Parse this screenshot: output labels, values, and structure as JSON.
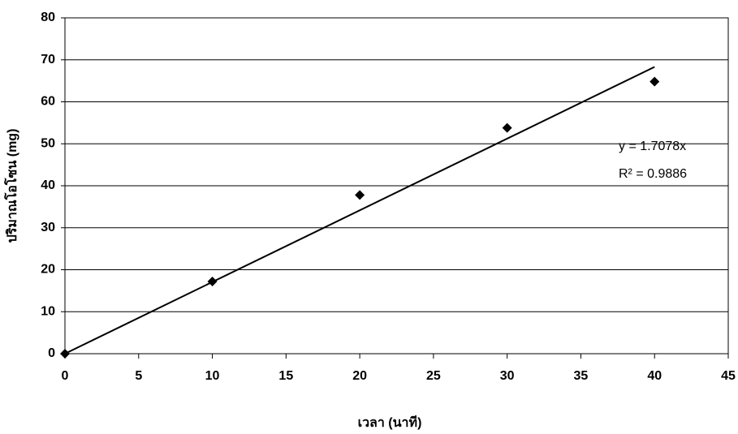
{
  "chart_data": {
    "type": "scatter",
    "x_label": "เวลา (นาที)",
    "y_label": "ปริมาณโอโซน (mg)",
    "x": [
      0,
      10,
      20,
      30,
      40
    ],
    "values": [
      0,
      17.2,
      37.8,
      53.8,
      64.8
    ],
    "color": "#000000",
    "xlim": [
      0,
      45
    ],
    "xticks": [
      0,
      5,
      10,
      15,
      20,
      25,
      30,
      35,
      40,
      45
    ],
    "ylim": [
      0,
      80
    ],
    "yticks": [
      0,
      10,
      20,
      30,
      40,
      50,
      60,
      70,
      80
    ],
    "grid": true,
    "trendline": {
      "slope": 1.7078,
      "xrange": [
        0,
        40
      ],
      "label": "y = 1.7078x",
      "r2_label": "R² = 0.9886"
    }
  }
}
